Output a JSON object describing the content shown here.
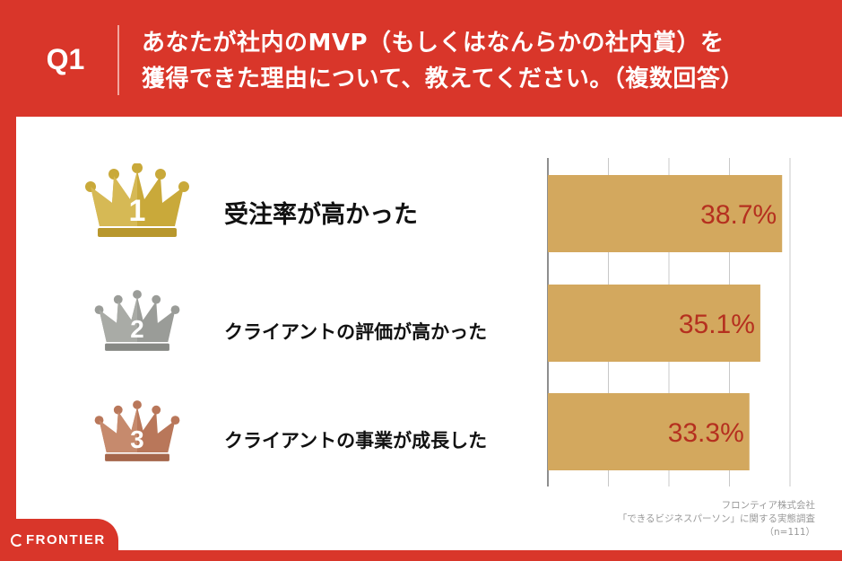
{
  "header": {
    "q_label": "Q1",
    "question_line1": "あなたが社内のMVP（もしくはなんらかの社内賞）を",
    "question_line2": "獲得できた理由について、教えてください。（複数回答）"
  },
  "crowns": [
    {
      "icon": "gold-crown-icon",
      "numeral": "1",
      "color": "#c9a93a"
    },
    {
      "icon": "silver-crown-icon",
      "numeral": "2",
      "color": "#9a9c98"
    },
    {
      "icon": "bronze-crown-icon",
      "numeral": "3",
      "color": "#b9775a"
    }
  ],
  "labels": [
    "受注率が高かった",
    "クライアントの評価が高かった",
    "クライアントの事業が成長した"
  ],
  "source": {
    "line1": "フロンティア株式会社",
    "line2": "「できるビジネスパーソン」に関する実態調査",
    "line3": "（n=111）"
  },
  "logo": {
    "text": "FRONTIER"
  },
  "colors": {
    "accent": "#d9362a",
    "bar": "#d3a85e",
    "value_text": "#b5301f"
  },
  "chart_data": {
    "type": "bar",
    "orientation": "horizontal",
    "categories": [
      "受注率が高かった",
      "クライアントの評価が高かった",
      "クライアントの事業が成長した"
    ],
    "values": [
      38.7,
      35.1,
      33.3
    ],
    "value_labels": [
      "38.7%",
      "35.1%",
      "33.3%"
    ],
    "xlim": [
      0,
      40
    ],
    "grid": true
  }
}
